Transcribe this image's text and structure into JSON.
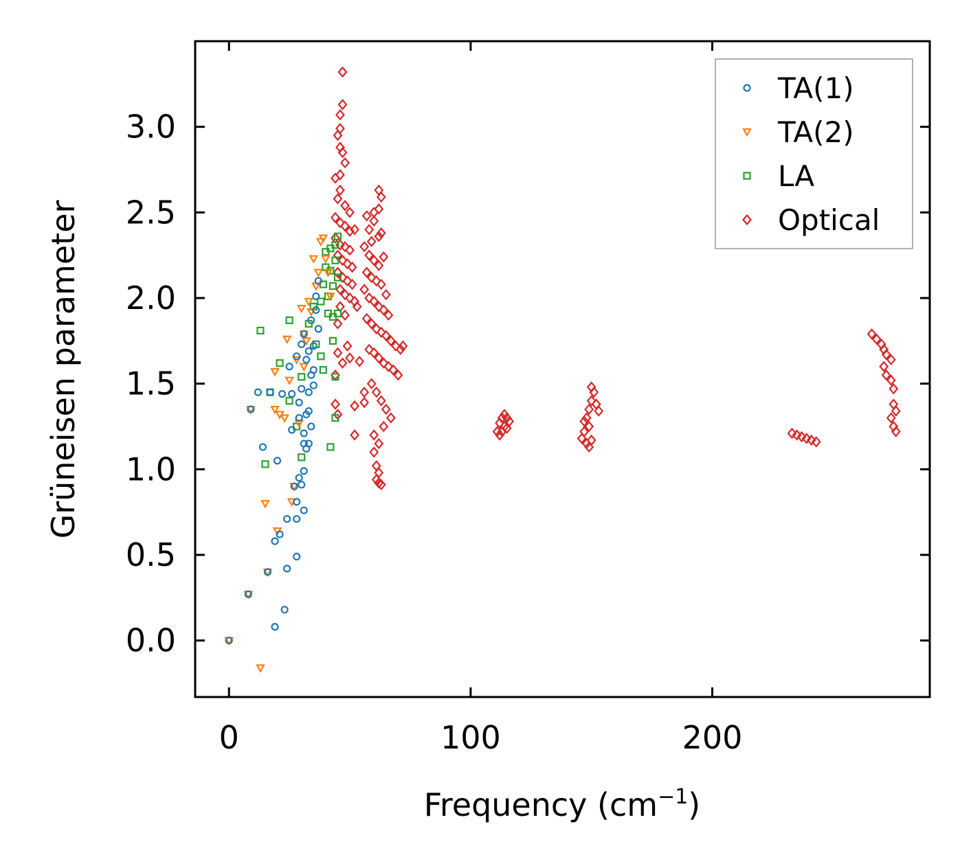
{
  "chart_data": {
    "type": "scatter",
    "title": "",
    "xlabel": "Frequency (cm",
    "xlabel_sup": "−1",
    "xlabel_close": ")",
    "ylabel": "Grüneisen parameter",
    "xlim": [
      -14,
      290
    ],
    "ylim": [
      -0.33,
      3.5
    ],
    "xticks": [
      0,
      100,
      200
    ],
    "xtick_labels": [
      "0",
      "100",
      "200"
    ],
    "yticks": [
      0.0,
      0.5,
      1.0,
      1.5,
      2.0,
      2.5,
      3.0
    ],
    "ytick_labels": [
      "0.0",
      "0.5",
      "1.0",
      "1.5",
      "2.0",
      "2.5",
      "3.0"
    ],
    "legend_position": "top-right",
    "series": [
      {
        "name": "TA(1)",
        "marker": "circle",
        "color": "#1f77b4",
        "points": [
          [
            0,
            0.0
          ],
          [
            8,
            0.27
          ],
          [
            9,
            1.35
          ],
          [
            12,
            1.45
          ],
          [
            14,
            1.13
          ],
          [
            16,
            0.4
          ],
          [
            17,
            1.45
          ],
          [
            19,
            0.08
          ],
          [
            19,
            0.58
          ],
          [
            20,
            1.05
          ],
          [
            21,
            0.62
          ],
          [
            22,
            1.44
          ],
          [
            23,
            0.18
          ],
          [
            24,
            0.42
          ],
          [
            24,
            0.71
          ],
          [
            25,
            1.6
          ],
          [
            26,
            1.23
          ],
          [
            26,
            1.44
          ],
          [
            27,
            0.9
          ],
          [
            28,
            0.49
          ],
          [
            28,
            0.71
          ],
          [
            28,
            0.81
          ],
          [
            28,
            1.66
          ],
          [
            29,
            0.95
          ],
          [
            29,
            1.3
          ],
          [
            29,
            1.39
          ],
          [
            30,
            0.91
          ],
          [
            30,
            1.47
          ],
          [
            30,
            1.73
          ],
          [
            31,
            0.76
          ],
          [
            31,
            0.99
          ],
          [
            31,
            1.15
          ],
          [
            31,
            1.21
          ],
          [
            31,
            1.79
          ],
          [
            32,
            1.12
          ],
          [
            32,
            1.32
          ],
          [
            32,
            1.64
          ],
          [
            33,
            1.45
          ],
          [
            33,
            1.34
          ],
          [
            33,
            1.15
          ],
          [
            33,
            1.69
          ],
          [
            34,
            1.25
          ],
          [
            34,
            1.55
          ],
          [
            34,
            1.87
          ],
          [
            35,
            1.58
          ],
          [
            35,
            1.49
          ],
          [
            35,
            1.72
          ],
          [
            36,
            1.93
          ],
          [
            36,
            2.01
          ],
          [
            37,
            1.82
          ],
          [
            37,
            2.1
          ]
        ]
      },
      {
        "name": "TA(2)",
        "marker": "triangle-down",
        "color": "#ff7f0e",
        "points": [
          [
            0,
            0.0
          ],
          [
            8,
            0.27
          ],
          [
            9,
            1.35
          ],
          [
            13,
            -0.16
          ],
          [
            15,
            0.8
          ],
          [
            16,
            0.4
          ],
          [
            19,
            1.57
          ],
          [
            19,
            1.35
          ],
          [
            20,
            0.64
          ],
          [
            21,
            1.32
          ],
          [
            23,
            1.3
          ],
          [
            24,
            1.76
          ],
          [
            25,
            1.52
          ],
          [
            26,
            0.81
          ],
          [
            27,
            0.9
          ],
          [
            28,
            1.64
          ],
          [
            29,
            1.27
          ],
          [
            30,
            1.94
          ],
          [
            31,
            1.6
          ],
          [
            31,
            1.79
          ],
          [
            32,
            1.75
          ],
          [
            33,
            1.98
          ],
          [
            34,
            1.92
          ],
          [
            35,
            2.23
          ],
          [
            36,
            2.07
          ],
          [
            37,
            2.15
          ],
          [
            38,
            2.33
          ],
          [
            39,
            2.35
          ],
          [
            40,
            2.23
          ],
          [
            41,
            2.15
          ],
          [
            42,
            2.01
          ]
        ]
      },
      {
        "name": "LA",
        "marker": "square",
        "color": "#2ca02c",
        "points": [
          [
            13,
            1.81
          ],
          [
            15,
            1.03
          ],
          [
            17,
            1.45
          ],
          [
            21,
            1.62
          ],
          [
            25,
            1.4
          ],
          [
            25,
            1.87
          ],
          [
            28,
            1.25
          ],
          [
            30,
            1.07
          ],
          [
            30,
            1.54
          ],
          [
            33,
            1.85
          ],
          [
            35,
            1.95
          ],
          [
            36,
            1.73
          ],
          [
            38,
            1.66
          ],
          [
            38,
            1.98
          ],
          [
            39,
            1.58
          ],
          [
            39,
            2.08
          ],
          [
            40,
            2.18
          ],
          [
            40,
            2.27
          ],
          [
            41,
            2.01
          ],
          [
            41,
            1.91
          ],
          [
            42,
            2.16
          ],
          [
            42,
            2.29
          ],
          [
            42,
            1.13
          ],
          [
            43,
            1.75
          ],
          [
            43,
            1.89
          ],
          [
            43,
            2.07
          ],
          [
            44,
            2.22
          ],
          [
            44,
            2.31
          ],
          [
            44,
            1.54
          ],
          [
            44,
            1.3
          ],
          [
            45,
            2.12
          ],
          [
            45,
            2.36
          ],
          [
            45,
            1.91
          ]
        ]
      },
      {
        "name": "Optical",
        "marker": "diamond",
        "color": "#d62728",
        "points": [
          [
            47,
            3.32
          ],
          [
            47,
            3.13
          ],
          [
            46,
            3.07
          ],
          [
            46,
            2.99
          ],
          [
            45,
            2.95
          ],
          [
            46,
            2.88
          ],
          [
            47,
            2.85
          ],
          [
            48,
            2.79
          ],
          [
            46,
            2.72
          ],
          [
            44,
            2.7
          ],
          [
            46,
            2.63
          ],
          [
            45,
            2.58
          ],
          [
            48,
            2.54
          ],
          [
            50,
            2.5
          ],
          [
            44,
            2.47
          ],
          [
            46,
            2.44
          ],
          [
            48,
            2.42
          ],
          [
            50,
            2.39
          ],
          [
            52,
            2.4
          ],
          [
            44,
            2.35
          ],
          [
            46,
            2.31
          ],
          [
            48,
            2.3
          ],
          [
            50,
            2.28
          ],
          [
            45,
            2.25
          ],
          [
            47,
            2.22
          ],
          [
            49,
            2.2
          ],
          [
            51,
            2.18
          ],
          [
            45,
            2.15
          ],
          [
            47,
            2.12
          ],
          [
            49,
            2.1
          ],
          [
            51,
            2.08
          ],
          [
            46,
            2.05
          ],
          [
            48,
            2.02
          ],
          [
            50,
            2.0
          ],
          [
            52,
            1.98
          ],
          [
            46,
            1.95
          ],
          [
            48,
            1.9
          ],
          [
            53,
            1.95
          ],
          [
            45,
            1.85
          ],
          [
            44,
            1.55
          ],
          [
            45,
            1.68
          ],
          [
            47,
            1.62
          ],
          [
            49,
            1.72
          ],
          [
            50,
            1.65
          ],
          [
            44,
            1.38
          ],
          [
            45,
            1.32
          ],
          [
            52,
            1.37
          ],
          [
            56,
            1.39
          ],
          [
            52,
            1.2
          ],
          [
            54,
            1.63
          ],
          [
            56,
            1.45
          ],
          [
            57,
            2.48
          ],
          [
            58,
            2.4
          ],
          [
            60,
            2.45
          ],
          [
            62,
            2.36
          ],
          [
            59,
            2.33
          ],
          [
            56,
            2.3
          ],
          [
            58,
            2.25
          ],
          [
            60,
            2.22
          ],
          [
            62,
            2.19
          ],
          [
            64,
            2.24
          ],
          [
            57,
            2.15
          ],
          [
            59,
            2.12
          ],
          [
            61,
            2.1
          ],
          [
            63,
            2.08
          ],
          [
            65,
            2.02
          ],
          [
            56,
            2.05
          ],
          [
            58,
            2.0
          ],
          [
            60,
            1.98
          ],
          [
            62,
            1.95
          ],
          [
            64,
            1.93
          ],
          [
            66,
            1.9
          ],
          [
            57,
            1.88
          ],
          [
            59,
            1.85
          ],
          [
            61,
            1.82
          ],
          [
            63,
            1.8
          ],
          [
            65,
            1.78
          ],
          [
            67,
            1.75
          ],
          [
            69,
            1.72
          ],
          [
            71,
            1.7
          ],
          [
            58,
            1.7
          ],
          [
            60,
            1.68
          ],
          [
            62,
            1.65
          ],
          [
            64,
            1.62
          ],
          [
            66,
            1.6
          ],
          [
            68,
            1.58
          ],
          [
            70,
            1.55
          ],
          [
            72,
            1.72
          ],
          [
            59,
            1.5
          ],
          [
            61,
            1.45
          ],
          [
            63,
            1.4
          ],
          [
            65,
            1.35
          ],
          [
            67,
            1.3
          ],
          [
            60,
            1.2
          ],
          [
            62,
            1.15
          ],
          [
            64,
            1.25
          ],
          [
            60,
            1.1
          ],
          [
            61,
            1.02
          ],
          [
            62,
            0.98
          ],
          [
            61,
            0.94
          ],
          [
            62,
            0.92
          ],
          [
            63,
            0.91
          ],
          [
            62,
            2.63
          ],
          [
            63,
            2.59
          ],
          [
            62,
            2.52
          ],
          [
            60,
            2.5
          ],
          [
            63,
            2.38
          ],
          [
            111,
            1.22
          ],
          [
            112,
            1.27
          ],
          [
            113,
            1.3
          ],
          [
            114,
            1.32
          ],
          [
            115,
            1.3
          ],
          [
            116,
            1.28
          ],
          [
            114,
            1.25
          ],
          [
            113,
            1.22
          ],
          [
            112,
            1.2
          ],
          [
            115,
            1.24
          ],
          [
            146,
            1.18
          ],
          [
            147,
            1.22
          ],
          [
            148,
            1.15
          ],
          [
            149,
            1.13
          ],
          [
            150,
            1.17
          ],
          [
            148,
            1.3
          ],
          [
            149,
            1.35
          ],
          [
            150,
            1.4
          ],
          [
            151,
            1.45
          ],
          [
            150,
            1.48
          ],
          [
            152,
            1.38
          ],
          [
            153,
            1.34
          ],
          [
            147,
            1.28
          ],
          [
            149,
            1.25
          ],
          [
            233,
            1.21
          ],
          [
            235,
            1.2
          ],
          [
            237,
            1.19
          ],
          [
            239,
            1.18
          ],
          [
            241,
            1.17
          ],
          [
            243,
            1.16
          ],
          [
            266,
            1.79
          ],
          [
            268,
            1.76
          ],
          [
            270,
            1.73
          ],
          [
            271,
            1.7
          ],
          [
            272,
            1.67
          ],
          [
            274,
            1.64
          ],
          [
            271,
            1.6
          ],
          [
            272,
            1.55
          ],
          [
            274,
            1.52
          ],
          [
            275,
            1.47
          ],
          [
            275,
            1.38
          ],
          [
            276,
            1.34
          ],
          [
            274,
            1.3
          ],
          [
            275,
            1.25
          ],
          [
            276,
            1.22
          ]
        ]
      }
    ]
  }
}
